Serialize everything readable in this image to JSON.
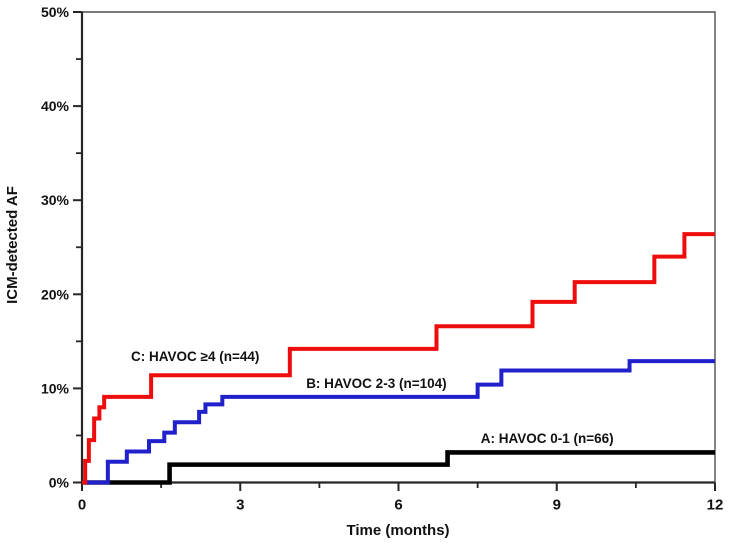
{
  "chart_data": {
    "type": "line",
    "subtype": "kaplan-meier-step",
    "title": "",
    "xlabel": "Time (months)",
    "ylabel": "ICM-detected AF",
    "xlim": [
      0,
      12
    ],
    "ylim": [
      0,
      50
    ],
    "grid": false,
    "legend_position": "inline-annotations",
    "x_axis": {
      "title": "Time (months)",
      "major_ticks": [
        {
          "value": 0,
          "label": "0"
        },
        {
          "value": 3,
          "label": "3"
        },
        {
          "value": 6,
          "label": "6"
        },
        {
          "value": 9,
          "label": "9"
        },
        {
          "value": 12,
          "label": "12"
        }
      ],
      "minor_ticks": [
        1.5,
        4.5,
        7.5,
        10.5
      ]
    },
    "y_axis": {
      "title": "ICM-detected AF",
      "major_ticks": [
        {
          "value": 0,
          "label": "0%"
        },
        {
          "value": 10,
          "label": "10%"
        },
        {
          "value": 20,
          "label": "20%"
        },
        {
          "value": 30,
          "label": "30%"
        },
        {
          "value": 40,
          "label": "40%"
        },
        {
          "value": 50,
          "label": "50%"
        }
      ],
      "minor_ticks": [
        5,
        15,
        25,
        35,
        45
      ]
    },
    "series": [
      {
        "id": "A",
        "label": "A: HAVOC 0-1 (n=66)",
        "group": "HAVOC 0-1",
        "n": 66,
        "color": "#000000",
        "line_width": 4.6,
        "final_pct": 3.2,
        "label_anchor": {
          "t": 7.56,
          "pct": 4.75
        },
        "points": [
          [
            0,
            0
          ],
          [
            1.66,
            1.9
          ],
          [
            6.93,
            3.2
          ]
        ]
      },
      {
        "id": "B",
        "label": "B: HAVOC 2-3 (n=104)",
        "group": "HAVOC 2-3",
        "n": 104,
        "color": "#2121cc",
        "line_width": 4,
        "final_pct": 12.9,
        "label_anchor": {
          "t": 4.25,
          "pct": 10.55
        },
        "points": [
          [
            0,
            0
          ],
          [
            0.49,
            2.2
          ],
          [
            0.85,
            3.3
          ],
          [
            1.27,
            4.4
          ],
          [
            1.56,
            5.3
          ],
          [
            1.76,
            6.4
          ],
          [
            2.22,
            7.5
          ],
          [
            2.34,
            8.3
          ],
          [
            2.66,
            9.1
          ],
          [
            7.5,
            10.4
          ],
          [
            7.95,
            11.9
          ],
          [
            10.38,
            12.9
          ]
        ]
      },
      {
        "id": "C",
        "label": "C: HAVOC ≥4 (n=44)",
        "group": "HAVOC ≥4",
        "n": 44,
        "color": "#ee0d0d",
        "line_width": 4,
        "final_pct": 26.4,
        "label_anchor": {
          "t": 0.93,
          "pct": 13.45
        },
        "points": [
          [
            0,
            0
          ],
          [
            0.06,
            2.3
          ],
          [
            0.13,
            4.5
          ],
          [
            0.23,
            6.8
          ],
          [
            0.33,
            8.0
          ],
          [
            0.42,
            9.1
          ],
          [
            1.31,
            11.4
          ],
          [
            3.94,
            14.2
          ],
          [
            6.72,
            16.6
          ],
          [
            8.54,
            19.2
          ],
          [
            9.34,
            21.3
          ],
          [
            10.85,
            24.0
          ],
          [
            11.42,
            26.4
          ]
        ]
      }
    ],
    "style": {
      "axis_color": "#262626",
      "box_color": "#4f4f4f",
      "text_color": "#111111",
      "background": "#ffffff"
    }
  }
}
